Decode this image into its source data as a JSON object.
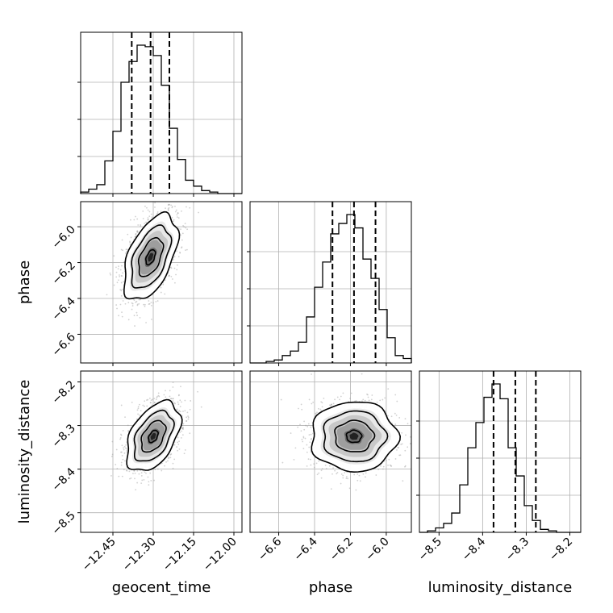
{
  "chart_data": {
    "type": "corner",
    "grid": true,
    "parameters": [
      {
        "name": "geocent_time",
        "axis_label": "geocent_time",
        "range": [
          -12.57,
          -11.97
        ],
        "ticks": [
          -12.45,
          -12.3,
          -12.15,
          -12.0
        ],
        "tick_labels": [
          "−12.45",
          "−12.30",
          "−12.15",
          "−12.00"
        ],
        "quantiles": [
          -12.38,
          -12.31,
          -12.24
        ],
        "histogram": {
          "bin_start": -12.57,
          "bin_width": 0.03,
          "heights": [
            0.01,
            0.03,
            0.06,
            0.22,
            0.42,
            0.75,
            0.89,
            1.0,
            0.99,
            0.93,
            0.73,
            0.44,
            0.23,
            0.09,
            0.05,
            0.02,
            0.01,
            0.0,
            0.0,
            0.0
          ]
        }
      },
      {
        "name": "phase",
        "axis_label": "phase",
        "range": [
          -6.76,
          -5.86
        ],
        "ticks": [
          -6.6,
          -6.4,
          -6.2,
          -6.0
        ],
        "tick_labels": [
          "−6.6",
          "−6.4",
          "−6.2",
          "−6.0"
        ],
        "quantiles": [
          -6.3,
          -6.18,
          -6.06
        ],
        "histogram": {
          "bin_start": -6.76,
          "bin_width": 0.045,
          "heights": [
            0.0,
            0.0,
            0.01,
            0.02,
            0.05,
            0.08,
            0.14,
            0.31,
            0.51,
            0.68,
            0.87,
            0.94,
            1.0,
            0.91,
            0.7,
            0.57,
            0.36,
            0.17,
            0.05,
            0.03
          ]
        }
      },
      {
        "name": "luminosity_distance",
        "axis_label": "luminosity_distance",
        "range": [
          -8.545,
          -8.175
        ],
        "ticks": [
          -8.5,
          -8.4,
          -8.3,
          -8.2
        ],
        "tick_labels": [
          "−8.5",
          "−8.4",
          "−8.3",
          "−8.2"
        ],
        "quantiles": [
          -8.375,
          -8.325,
          -8.278
        ],
        "histogram": {
          "bin_start": -8.545,
          "bin_width": 0.0185,
          "heights": [
            0.0,
            0.01,
            0.03,
            0.06,
            0.13,
            0.32,
            0.57,
            0.74,
            0.91,
            1.0,
            0.9,
            0.57,
            0.38,
            0.18,
            0.08,
            0.02,
            0.01,
            0.0,
            0.0,
            0.0
          ]
        }
      }
    ],
    "pairs": [
      {
        "x": "geocent_time",
        "y": "phase",
        "center": [
          -12.31,
          -6.17
        ],
        "sigma": [
          0.05,
          0.12
        ],
        "correlation": 0.5
      },
      {
        "x": "geocent_time",
        "y": "luminosity_distance",
        "center": [
          -12.3,
          -8.325
        ],
        "sigma": [
          0.05,
          0.04
        ],
        "correlation": 0.45
      },
      {
        "x": "phase",
        "y": "luminosity_distance",
        "center": [
          -6.18,
          -8.325
        ],
        "sigma": [
          0.12,
          0.04
        ],
        "correlation": 0.0
      }
    ]
  }
}
